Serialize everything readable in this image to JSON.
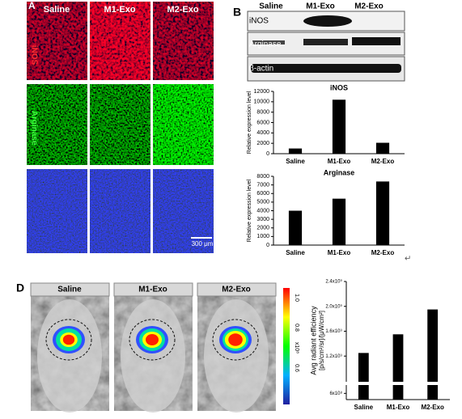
{
  "figure": {
    "panel_a": "A",
    "panel_b": "B",
    "panel_d": "D",
    "a_columns": [
      "Saline",
      "M1-Exo",
      "M2-Exo"
    ],
    "a_rows": [
      "iNOS",
      "Arginase",
      "DAPI"
    ],
    "scale_bar": "300 μm",
    "blot_columns": [
      "Saline",
      "M1-Exo",
      "M2-Exo"
    ],
    "blot_rows": [
      "iNOS",
      "Arginase",
      "β-actin"
    ],
    "d_columns": [
      "Saline",
      "M1-Exo",
      "M2-Exo"
    ],
    "colorbar_labels": [
      "1.0",
      "0.8",
      "x10⁸",
      "0.6"
    ],
    "return_mark": "↵"
  },
  "chart_data": [
    {
      "type": "bar",
      "title": "iNOS",
      "ylabel": "Relative expression level",
      "categories": [
        "Saline",
        "M1-Exo",
        "M2-Exo"
      ],
      "values": [
        1000,
        10400,
        2100
      ],
      "color": "#000000",
      "ylim": [
        0,
        12000
      ],
      "yticks": [
        0,
        2000,
        4000,
        6000,
        8000,
        10000,
        12000
      ]
    },
    {
      "type": "bar",
      "title": "Arginase",
      "ylabel": "Relative expression level",
      "categories": [
        "Saline",
        "M1-Exo",
        "M2-Exo"
      ],
      "values": [
        4000,
        5400,
        7400
      ],
      "color": "#000000",
      "ylim": [
        0,
        8000
      ],
      "yticks": [
        0,
        1000,
        2000,
        3000,
        4000,
        5000,
        6000,
        7000,
        8000
      ]
    },
    {
      "type": "bar",
      "ylabel": "Avg radiant efficiency",
      "ylabel2": "[p/s/cm²/sr]/[μW/cm²]",
      "categories": [
        "Saline",
        "M1-Exo",
        "M2-Exo"
      ],
      "values": [
        1250000000,
        1550000000,
        1950000000
      ],
      "color": "#000000",
      "ylim": [
        500000000,
        2400000000
      ],
      "yticks": [
        {
          "value": 600000000,
          "label": "6x10⁸"
        },
        {
          "value": 1200000000,
          "label": "1.2x10⁹"
        },
        {
          "value": 1600000000,
          "label": "1.6x10⁹"
        },
        {
          "value": 2000000000,
          "label": "2.0x10⁹"
        },
        {
          "value": 2400000000,
          "label": "2.4x10⁹"
        }
      ]
    }
  ]
}
